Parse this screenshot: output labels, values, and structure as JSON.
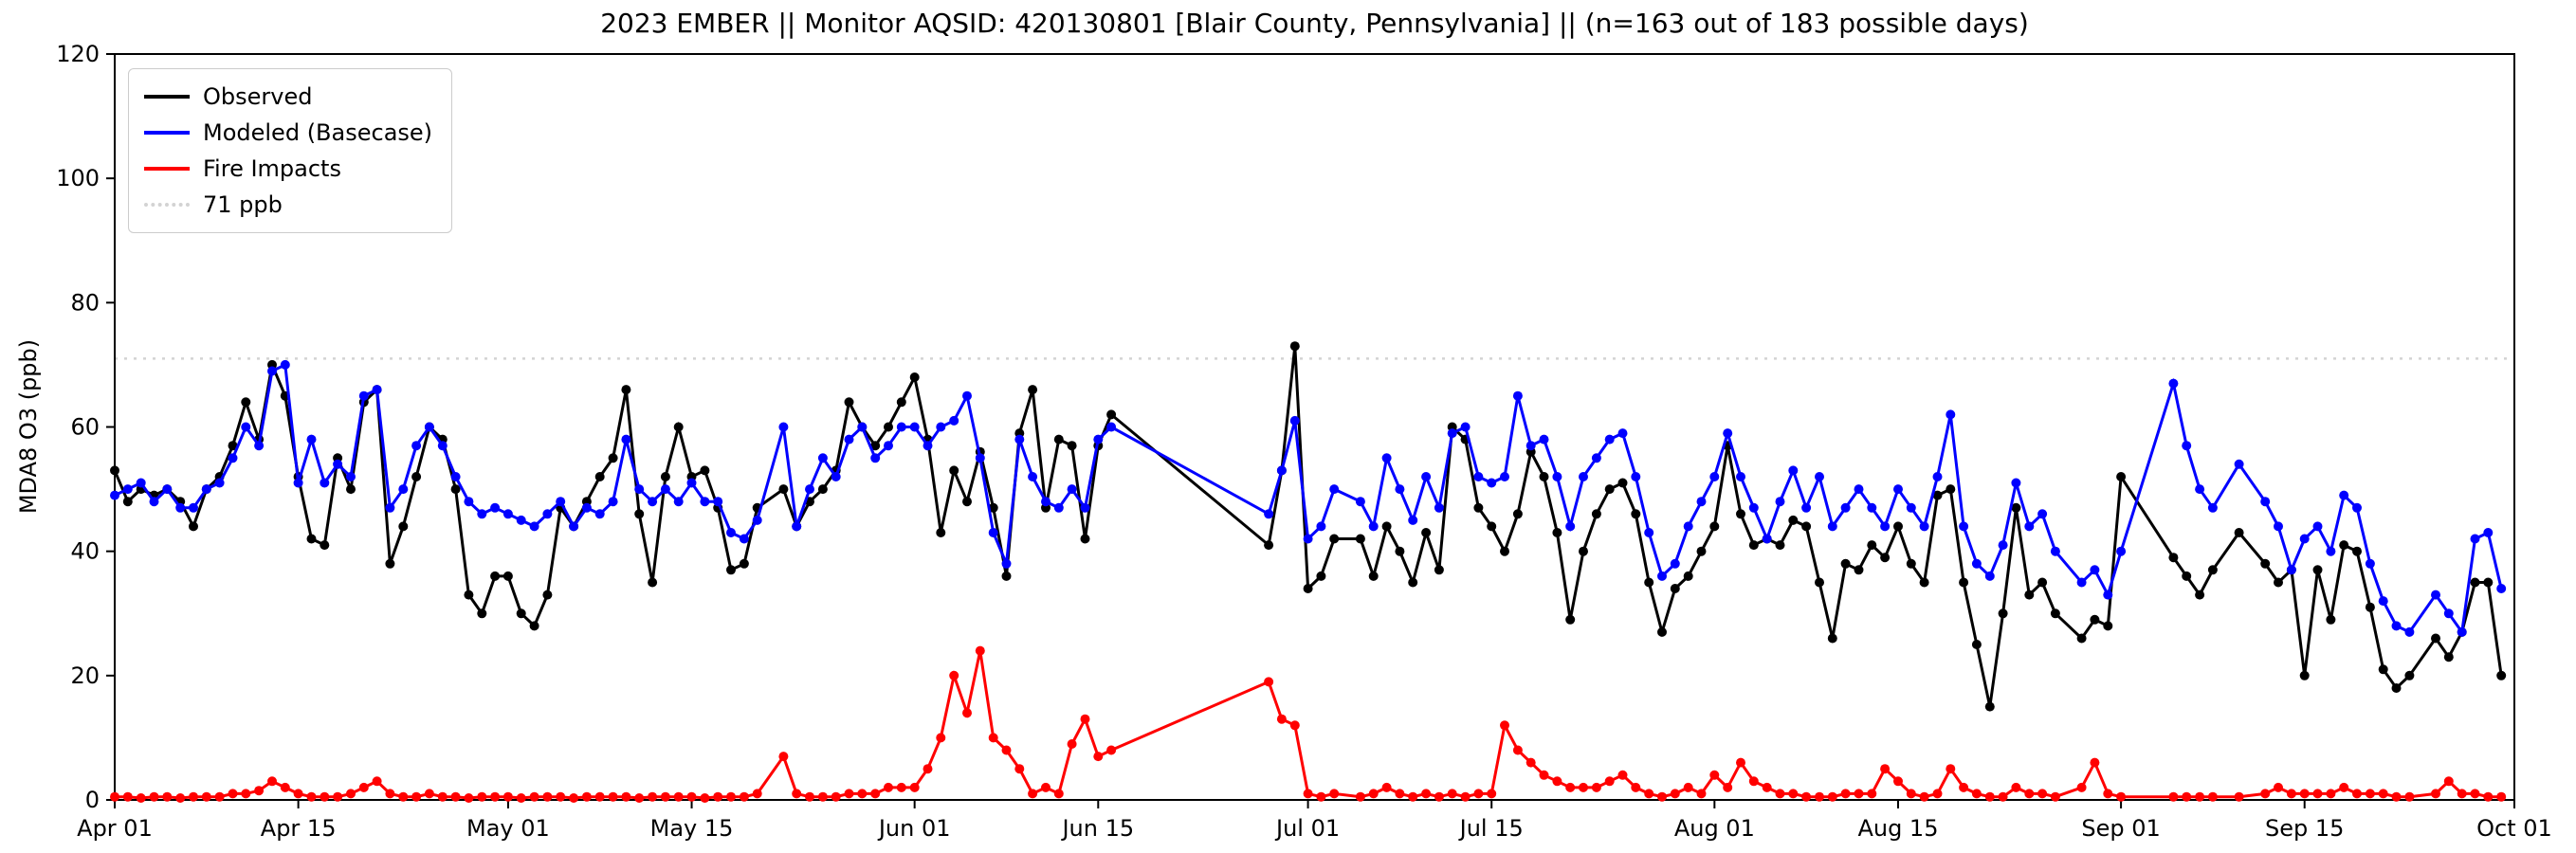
{
  "chart_data": {
    "type": "line",
    "title": "2023 EMBER || Monitor AQSID: 420130801 [Blair County, Pennsylvania] || (n=163 out of 183 possible days)",
    "xlabel": "",
    "ylabel": "MDA8 O3 (ppb)",
    "ylim": [
      0,
      120
    ],
    "yticks": [
      0,
      20,
      40,
      60,
      80,
      100,
      120
    ],
    "n_days": 183,
    "start_date": "Apr 01",
    "end_date": "Oct 01",
    "grid": false,
    "legend_position": "upper-left",
    "threshold": {
      "label": "71 ppb",
      "value": 71,
      "color": "#d3d3d3",
      "style": "dotted"
    },
    "xticks": [
      {
        "label": "Apr 01",
        "day": 0
      },
      {
        "label": "Apr 15",
        "day": 14
      },
      {
        "label": "May 01",
        "day": 30
      },
      {
        "label": "May 15",
        "day": 44
      },
      {
        "label": "Jun 01",
        "day": 61
      },
      {
        "label": "Jun 15",
        "day": 75
      },
      {
        "label": "Jul 01",
        "day": 91
      },
      {
        "label": "Jul 15",
        "day": 105
      },
      {
        "label": "Aug 01",
        "day": 122
      },
      {
        "label": "Aug 15",
        "day": 136
      },
      {
        "label": "Sep 01",
        "day": 153
      },
      {
        "label": "Sep 15",
        "day": 167
      },
      {
        "label": "Oct 01",
        "day": 183
      }
    ],
    "series": [
      {
        "id": "observed",
        "name": "Observed",
        "color": "#000000",
        "values": [
          53,
          48,
          50,
          49,
          50,
          48,
          44,
          50,
          52,
          57,
          64,
          58,
          70,
          65,
          52,
          42,
          41,
          55,
          50,
          64,
          66,
          38,
          44,
          52,
          60,
          58,
          50,
          33,
          30,
          36,
          36,
          30,
          28,
          33,
          47,
          44,
          48,
          52,
          55,
          66,
          46,
          35,
          52,
          60,
          52,
          53,
          47,
          37,
          38,
          47,
          null,
          50,
          44,
          48,
          50,
          53,
          64,
          60,
          57,
          60,
          64,
          68,
          58,
          43,
          53,
          48,
          56,
          47,
          36,
          59,
          66,
          47,
          58,
          57,
          42,
          57,
          62,
          null,
          null,
          null,
          null,
          null,
          null,
          null,
          null,
          null,
          null,
          null,
          41,
          53,
          73,
          34,
          36,
          42,
          null,
          42,
          36,
          44,
          40,
          35,
          43,
          37,
          60,
          58,
          47,
          44,
          40,
          46,
          56,
          52,
          43,
          29,
          40,
          46,
          50,
          51,
          46,
          35,
          27,
          34,
          36,
          40,
          44,
          57,
          46,
          41,
          42,
          41,
          45,
          44,
          35,
          26,
          38,
          37,
          41,
          39,
          44,
          38,
          35,
          49,
          50,
          35,
          25,
          15,
          30,
          47,
          33,
          35,
          30,
          null,
          26,
          29,
          28,
          52,
          null,
          null,
          null,
          39,
          36,
          33,
          37,
          null,
          43,
          null,
          38,
          35,
          37,
          20,
          37,
          29,
          41,
          40,
          31,
          21,
          18,
          20,
          null,
          26,
          23,
          27,
          35,
          35,
          20
        ]
      },
      {
        "id": "modeled",
        "name": "Modeled (Basecase)",
        "color": "#0000ff",
        "values": [
          49,
          50,
          51,
          48,
          50,
          47,
          47,
          50,
          51,
          55,
          60,
          57,
          69,
          70,
          51,
          58,
          51,
          54,
          52,
          65,
          66,
          47,
          50,
          57,
          60,
          57,
          52,
          48,
          46,
          47,
          46,
          45,
          44,
          46,
          48,
          44,
          47,
          46,
          48,
          58,
          50,
          48,
          50,
          48,
          51,
          48,
          48,
          43,
          42,
          45,
          null,
          60,
          44,
          50,
          55,
          52,
          58,
          60,
          55,
          57,
          60,
          60,
          57,
          60,
          61,
          65,
          55,
          43,
          38,
          58,
          52,
          48,
          47,
          50,
          47,
          58,
          60,
          null,
          null,
          null,
          null,
          null,
          null,
          null,
          null,
          null,
          null,
          null,
          46,
          53,
          61,
          42,
          44,
          50,
          null,
          48,
          44,
          55,
          50,
          45,
          52,
          47,
          59,
          60,
          52,
          51,
          52,
          65,
          57,
          58,
          52,
          44,
          52,
          55,
          58,
          59,
          52,
          43,
          36,
          38,
          44,
          48,
          52,
          59,
          52,
          47,
          42,
          48,
          53,
          47,
          52,
          44,
          47,
          50,
          47,
          44,
          50,
          47,
          44,
          52,
          62,
          44,
          38,
          36,
          41,
          51,
          44,
          46,
          40,
          null,
          35,
          37,
          33,
          40,
          null,
          null,
          null,
          67,
          57,
          50,
          47,
          null,
          54,
          null,
          48,
          44,
          37,
          42,
          44,
          40,
          49,
          47,
          38,
          32,
          28,
          27,
          null,
          33,
          30,
          27,
          42,
          43,
          34
        ]
      },
      {
        "id": "fire",
        "name": "Fire Impacts",
        "color": "#ff0000",
        "values": [
          0.5,
          0.5,
          0.3,
          0.5,
          0.5,
          0.3,
          0.5,
          0.5,
          0.5,
          1,
          1,
          1.5,
          3,
          2,
          1,
          0.5,
          0.5,
          0.5,
          1,
          2,
          3,
          1,
          0.5,
          0.5,
          1,
          0.5,
          0.5,
          0.3,
          0.5,
          0.5,
          0.5,
          0.3,
          0.5,
          0.5,
          0.5,
          0.3,
          0.5,
          0.5,
          0.5,
          0.5,
          0.3,
          0.5,
          0.5,
          0.5,
          0.5,
          0.3,
          0.5,
          0.5,
          0.5,
          1,
          null,
          7,
          1,
          0.5,
          0.5,
          0.5,
          1,
          1,
          1,
          2,
          2,
          2,
          5,
          10,
          20,
          14,
          24,
          10,
          8,
          5,
          1,
          2,
          1,
          9,
          13,
          7,
          8,
          null,
          null,
          null,
          null,
          null,
          null,
          null,
          null,
          null,
          null,
          null,
          19,
          13,
          12,
          1,
          0.5,
          1,
          null,
          0.5,
          1,
          2,
          1,
          0.5,
          1,
          0.5,
          1,
          0.5,
          1,
          1,
          12,
          8,
          6,
          4,
          3,
          2,
          2,
          2,
          3,
          4,
          2,
          1,
          0.5,
          1,
          2,
          1,
          4,
          2,
          6,
          3,
          2,
          1,
          1,
          0.5,
          0.5,
          0.5,
          1,
          1,
          1,
          5,
          3,
          1,
          0.5,
          1,
          5,
          2,
          1,
          0.5,
          0.5,
          2,
          1,
          1,
          0.5,
          null,
          2,
          6,
          1,
          0.5,
          null,
          null,
          null,
          0.5,
          0.5,
          0.5,
          0.5,
          null,
          0.5,
          null,
          1,
          2,
          1,
          1,
          1,
          1,
          2,
          1,
          1,
          1,
          0.5,
          0.5,
          null,
          1,
          3,
          1,
          1,
          0.5,
          0.5
        ]
      }
    ]
  }
}
